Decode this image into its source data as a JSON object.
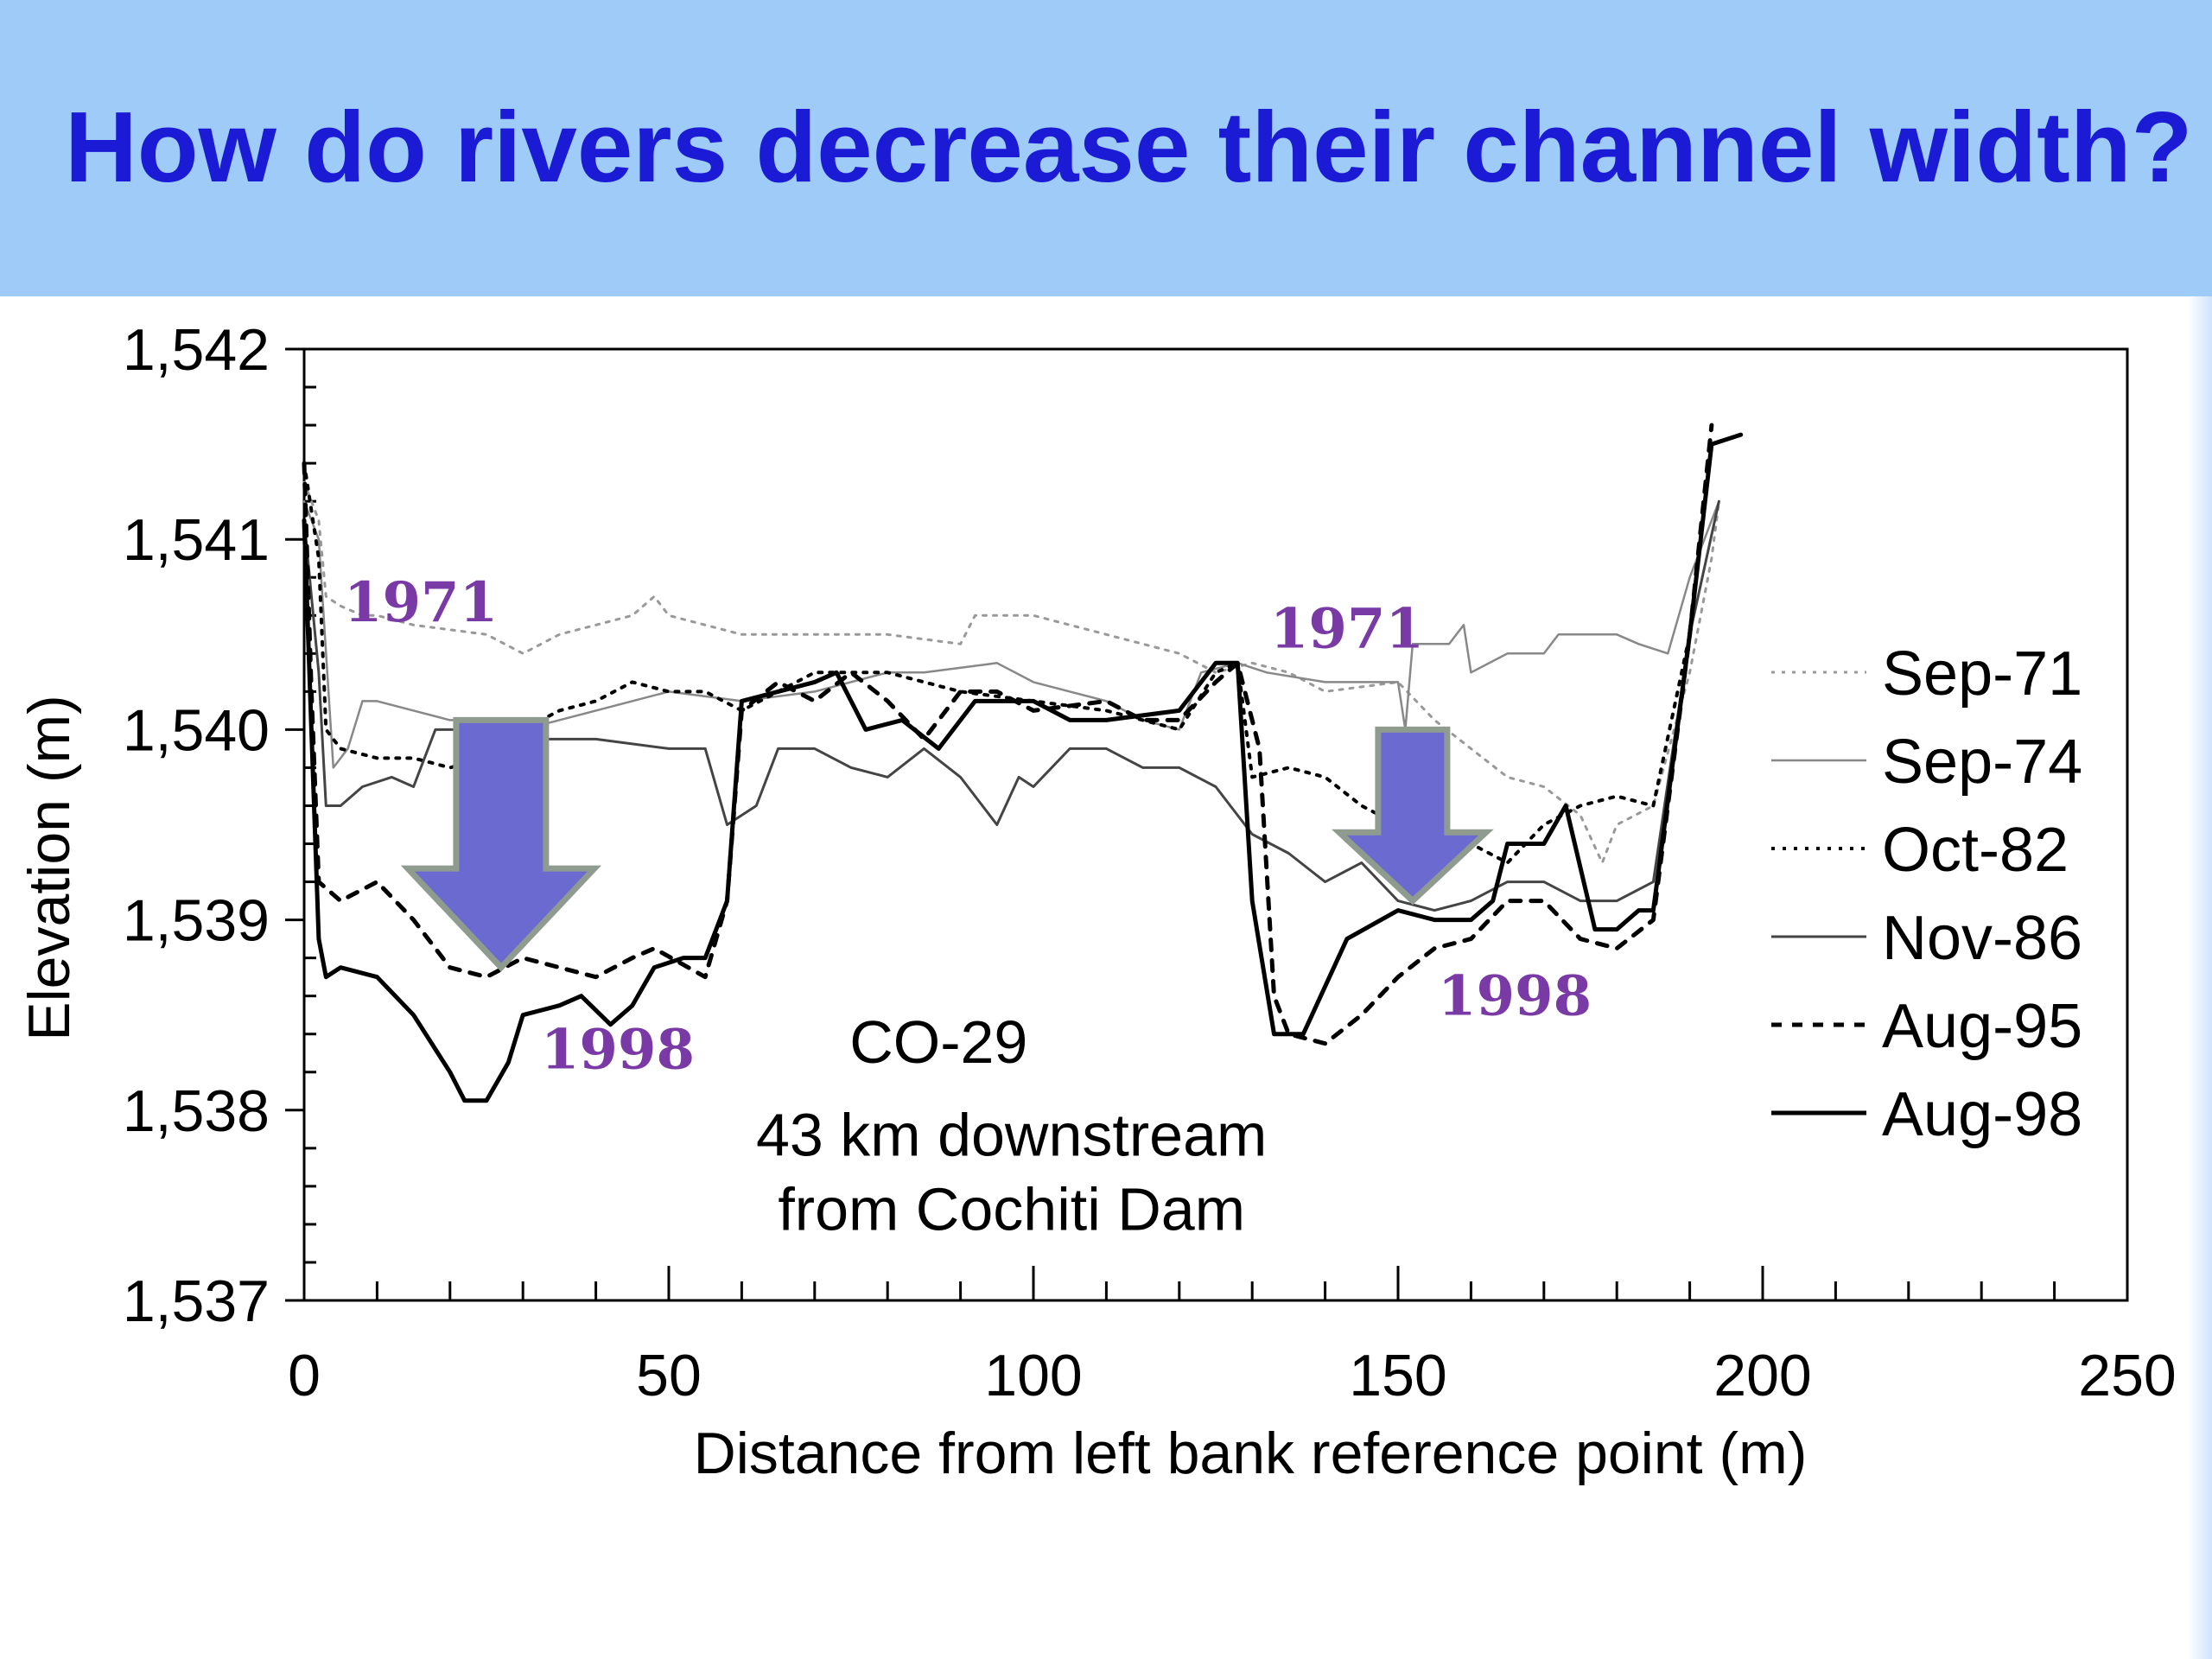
{
  "slide": {
    "title": "How do rivers decrease their channel width?",
    "title_color": "#1b1bd6",
    "band_color": "#9ecbf7"
  },
  "chart_data": {
    "type": "line",
    "title": "",
    "xlabel": "Distance from left bank reference point (m)",
    "ylabel": "Elevation (m)",
    "xlim": [
      0,
      250
    ],
    "ylim": [
      1537,
      1542
    ],
    "xticks": [
      "0",
      "50",
      "100",
      "150",
      "200",
      "250"
    ],
    "yticks": [
      "1,537",
      "1,538",
      "1,539",
      "1,540",
      "1,541",
      "1,542"
    ],
    "xtick_values": [
      0,
      50,
      100,
      150,
      200,
      250
    ],
    "ytick_values": [
      1537,
      1538,
      1539,
      1540,
      1541,
      1542
    ],
    "grid": false,
    "legend_position": "right",
    "series": [
      {
        "name": "Sep-71",
        "style": "dotted",
        "color": "#999999",
        "points": [
          [
            0,
            1541.3
          ],
          [
            2,
            1541.1
          ],
          [
            3,
            1540.7
          ],
          [
            5,
            1540.65
          ],
          [
            8,
            1540.6
          ],
          [
            10,
            1540.6
          ],
          [
            15,
            1540.55
          ],
          [
            25,
            1540.5
          ],
          [
            30,
            1540.4
          ],
          [
            35,
            1540.5
          ],
          [
            40,
            1540.55
          ],
          [
            45,
            1540.6
          ],
          [
            48,
            1540.7
          ],
          [
            50,
            1540.6
          ],
          [
            55,
            1540.55
          ],
          [
            60,
            1540.5
          ],
          [
            70,
            1540.5
          ],
          [
            80,
            1540.5
          ],
          [
            90,
            1540.45
          ],
          [
            92,
            1540.6
          ],
          [
            100,
            1540.6
          ],
          [
            105,
            1540.55
          ],
          [
            110,
            1540.5
          ],
          [
            120,
            1540.4
          ],
          [
            125,
            1540.3
          ],
          [
            130,
            1540.35
          ],
          [
            135,
            1540.3
          ],
          [
            140,
            1540.2
          ],
          [
            150,
            1540.25
          ],
          [
            155,
            1540.05
          ],
          [
            160,
            1539.9
          ],
          [
            165,
            1539.75
          ],
          [
            170,
            1539.7
          ],
          [
            175,
            1539.55
          ],
          [
            178,
            1539.3
          ],
          [
            180,
            1539.5
          ],
          [
            185,
            1539.6
          ],
          [
            190,
            1540.3
          ],
          [
            193,
            1540.9
          ],
          [
            194,
            1541.2
          ]
        ]
      },
      {
        "name": "Sep-74",
        "style": "solid-thin",
        "color": "#999999",
        "points": [
          [
            0,
            1541.2
          ],
          [
            2,
            1541
          ],
          [
            4,
            1539.8
          ],
          [
            6,
            1539.9
          ],
          [
            8,
            1540.15
          ],
          [
            10,
            1540.15
          ],
          [
            15,
            1540.1
          ],
          [
            20,
            1540.05
          ],
          [
            25,
            1540.05
          ],
          [
            30,
            1540.0
          ],
          [
            40,
            1540.1
          ],
          [
            50,
            1540.2
          ],
          [
            60,
            1540.15
          ],
          [
            70,
            1540.2
          ],
          [
            80,
            1540.3
          ],
          [
            85,
            1540.3
          ],
          [
            95,
            1540.35
          ],
          [
            100,
            1540.25
          ],
          [
            105,
            1540.2
          ],
          [
            110,
            1540.15
          ],
          [
            115,
            1540.05
          ],
          [
            120,
            1540.0
          ],
          [
            123,
            1540.3
          ],
          [
            128,
            1540.35
          ],
          [
            132,
            1540.3
          ],
          [
            140,
            1540.25
          ],
          [
            150,
            1540.25
          ],
          [
            151,
            1540.0
          ],
          [
            152,
            1540.45
          ],
          [
            157,
            1540.45
          ],
          [
            159,
            1540.55
          ],
          [
            160,
            1540.3
          ],
          [
            165,
            1540.4
          ],
          [
            170,
            1540.4
          ],
          [
            172,
            1540.5
          ],
          [
            180,
            1540.5
          ],
          [
            183,
            1540.45
          ],
          [
            187,
            1540.4
          ],
          [
            190,
            1540.8
          ],
          [
            194,
            1541.2
          ]
        ]
      },
      {
        "name": "Oct-82",
        "style": "dotted-bold",
        "color": "#000000",
        "points": [
          [
            0,
            1541.4
          ],
          [
            2,
            1540.9
          ],
          [
            3,
            1540.0
          ],
          [
            5,
            1539.9
          ],
          [
            10,
            1539.85
          ],
          [
            15,
            1539.85
          ],
          [
            20,
            1539.8
          ],
          [
            25,
            1539.85
          ],
          [
            30,
            1540.0
          ],
          [
            35,
            1540.1
          ],
          [
            40,
            1540.15
          ],
          [
            45,
            1540.25
          ],
          [
            50,
            1540.2
          ],
          [
            55,
            1540.2
          ],
          [
            60,
            1540.1
          ],
          [
            65,
            1540.2
          ],
          [
            70,
            1540.3
          ],
          [
            80,
            1540.3
          ],
          [
            90,
            1540.2
          ],
          [
            100,
            1540.15
          ],
          [
            110,
            1540.1
          ],
          [
            115,
            1540.05
          ],
          [
            120,
            1540.0
          ],
          [
            125,
            1540.3
          ],
          [
            128,
            1540.35
          ],
          [
            130,
            1539.75
          ],
          [
            135,
            1539.8
          ],
          [
            140,
            1539.75
          ],
          [
            145,
            1539.6
          ],
          [
            150,
            1539.5
          ],
          [
            155,
            1539.45
          ],
          [
            160,
            1539.4
          ],
          [
            165,
            1539.3
          ],
          [
            170,
            1539.5
          ],
          [
            175,
            1539.6
          ],
          [
            180,
            1539.65
          ],
          [
            185,
            1539.6
          ],
          [
            190,
            1540.5
          ],
          [
            193,
            1541.5
          ]
        ]
      },
      {
        "name": "Nov-86",
        "style": "solid",
        "color": "#555555",
        "points": [
          [
            0,
            1541.1
          ],
          [
            2,
            1540.3
          ],
          [
            3,
            1539.6
          ],
          [
            5,
            1539.6
          ],
          [
            8,
            1539.7
          ],
          [
            12,
            1539.75
          ],
          [
            15,
            1539.7
          ],
          [
            18,
            1540.0
          ],
          [
            25,
            1540.0
          ],
          [
            30,
            1539.95
          ],
          [
            40,
            1539.95
          ],
          [
            50,
            1539.9
          ],
          [
            55,
            1539.9
          ],
          [
            58,
            1539.5
          ],
          [
            62,
            1539.6
          ],
          [
            65,
            1539.9
          ],
          [
            70,
            1539.9
          ],
          [
            75,
            1539.8
          ],
          [
            80,
            1539.75
          ],
          [
            85,
            1539.9
          ],
          [
            90,
            1539.75
          ],
          [
            95,
            1539.5
          ],
          [
            98,
            1539.75
          ],
          [
            100,
            1539.7
          ],
          [
            105,
            1539.9
          ],
          [
            110,
            1539.9
          ],
          [
            115,
            1539.8
          ],
          [
            120,
            1539.8
          ],
          [
            125,
            1539.7
          ],
          [
            130,
            1539.45
          ],
          [
            135,
            1539.35
          ],
          [
            140,
            1539.2
          ],
          [
            145,
            1539.3
          ],
          [
            150,
            1539.1
          ],
          [
            155,
            1539.05
          ],
          [
            160,
            1539.1
          ],
          [
            165,
            1539.2
          ],
          [
            170,
            1539.2
          ],
          [
            175,
            1539.1
          ],
          [
            180,
            1539.1
          ],
          [
            185,
            1539.2
          ],
          [
            190,
            1540.5
          ],
          [
            194,
            1541.2
          ]
        ]
      },
      {
        "name": "Aug-95",
        "style": "dashed",
        "color": "#000000",
        "points": [
          [
            0,
            1541.4
          ],
          [
            1,
            1540.2
          ],
          [
            2,
            1539.2
          ],
          [
            5,
            1539.1
          ],
          [
            10,
            1539.2
          ],
          [
            15,
            1539.0
          ],
          [
            20,
            1538.75
          ],
          [
            25,
            1538.7
          ],
          [
            30,
            1538.8
          ],
          [
            35,
            1538.75
          ],
          [
            40,
            1538.7
          ],
          [
            45,
            1538.8
          ],
          [
            48,
            1538.85
          ],
          [
            55,
            1538.7
          ],
          [
            58,
            1539.1
          ],
          [
            60,
            1540.1
          ],
          [
            65,
            1540.25
          ],
          [
            70,
            1540.15
          ],
          [
            75,
            1540.3
          ],
          [
            80,
            1540.15
          ],
          [
            85,
            1539.95
          ],
          [
            90,
            1540.2
          ],
          [
            95,
            1540.2
          ],
          [
            100,
            1540.1
          ],
          [
            110,
            1540.15
          ],
          [
            115,
            1540.05
          ],
          [
            120,
            1540.05
          ],
          [
            125,
            1540.25
          ],
          [
            128,
            1540.35
          ],
          [
            131,
            1539.9
          ],
          [
            133,
            1538.6
          ],
          [
            135,
            1538.4
          ],
          [
            140,
            1538.35
          ],
          [
            145,
            1538.5
          ],
          [
            150,
            1538.7
          ],
          [
            155,
            1538.85
          ],
          [
            160,
            1538.9
          ],
          [
            165,
            1539.1
          ],
          [
            170,
            1539.1
          ],
          [
            175,
            1538.9
          ],
          [
            180,
            1538.85
          ],
          [
            185,
            1539.0
          ],
          [
            190,
            1540.5
          ],
          [
            193,
            1541.6
          ]
        ]
      },
      {
        "name": "Aug-98",
        "style": "solid-bold",
        "color": "#000000",
        "points": [
          [
            0,
            1541.1
          ],
          [
            1,
            1540.0
          ],
          [
            2,
            1538.9
          ],
          [
            3,
            1538.7
          ],
          [
            5,
            1538.75
          ],
          [
            10,
            1538.7
          ],
          [
            15,
            1538.5
          ],
          [
            20,
            1538.2
          ],
          [
            22,
            1538.05
          ],
          [
            25,
            1538.05
          ],
          [
            28,
            1538.25
          ],
          [
            30,
            1538.5
          ],
          [
            35,
            1538.55
          ],
          [
            38,
            1538.6
          ],
          [
            42,
            1538.45
          ],
          [
            45,
            1538.55
          ],
          [
            48,
            1538.75
          ],
          [
            52,
            1538.8
          ],
          [
            55,
            1538.8
          ],
          [
            58,
            1539.1
          ],
          [
            60,
            1540.15
          ],
          [
            65,
            1540.2
          ],
          [
            70,
            1540.25
          ],
          [
            73,
            1540.3
          ],
          [
            77,
            1540.0
          ],
          [
            82,
            1540.05
          ],
          [
            87,
            1539.9
          ],
          [
            92,
            1540.15
          ],
          [
            100,
            1540.15
          ],
          [
            105,
            1540.05
          ],
          [
            110,
            1540.05
          ],
          [
            120,
            1540.1
          ],
          [
            125,
            1540.35
          ],
          [
            128,
            1540.35
          ],
          [
            130,
            1539.1
          ],
          [
            133,
            1538.4
          ],
          [
            137,
            1538.4
          ],
          [
            143,
            1538.9
          ],
          [
            150,
            1539.05
          ],
          [
            155,
            1539.0
          ],
          [
            160,
            1539.0
          ],
          [
            163,
            1539.1
          ],
          [
            165,
            1539.4
          ],
          [
            170,
            1539.4
          ],
          [
            173,
            1539.6
          ],
          [
            177,
            1538.95
          ],
          [
            180,
            1538.95
          ],
          [
            183,
            1539.05
          ],
          [
            185,
            1539.05
          ],
          [
            190,
            1540.5
          ],
          [
            193,
            1541.5
          ],
          [
            197,
            1541.55
          ]
        ]
      }
    ],
    "annotations": [
      {
        "text": "1971",
        "x": 16,
        "y": 1540.57,
        "color": "#7a3aa6",
        "kind": "year"
      },
      {
        "text": "1998",
        "x": 43,
        "y": 1538.22,
        "color": "#7a3aa6",
        "kind": "year"
      },
      {
        "text": "1971",
        "x": 143,
        "y": 1540.43,
        "color": "#7a3aa6",
        "kind": "year"
      },
      {
        "text": "1998",
        "x": 166,
        "y": 1538.5,
        "color": "#7a3aa6",
        "kind": "year"
      },
      {
        "text": "CO-29",
        "x": 87,
        "y": 1538.25,
        "kind": "note"
      },
      {
        "text": "43 km downstream",
        "x": 97,
        "y": 1537.76,
        "kind": "note"
      },
      {
        "text": "from Cochiti Dam",
        "x": 97,
        "y": 1537.37,
        "kind": "note"
      }
    ],
    "arrows": [
      {
        "direction": "down",
        "x": 27,
        "from": 1540.05,
        "to": 1538.75,
        "color": "#6a6ad0"
      },
      {
        "direction": "down",
        "x": 152,
        "from": 1540.0,
        "to": 1539.1,
        "color": "#6a6ad0"
      }
    ]
  }
}
